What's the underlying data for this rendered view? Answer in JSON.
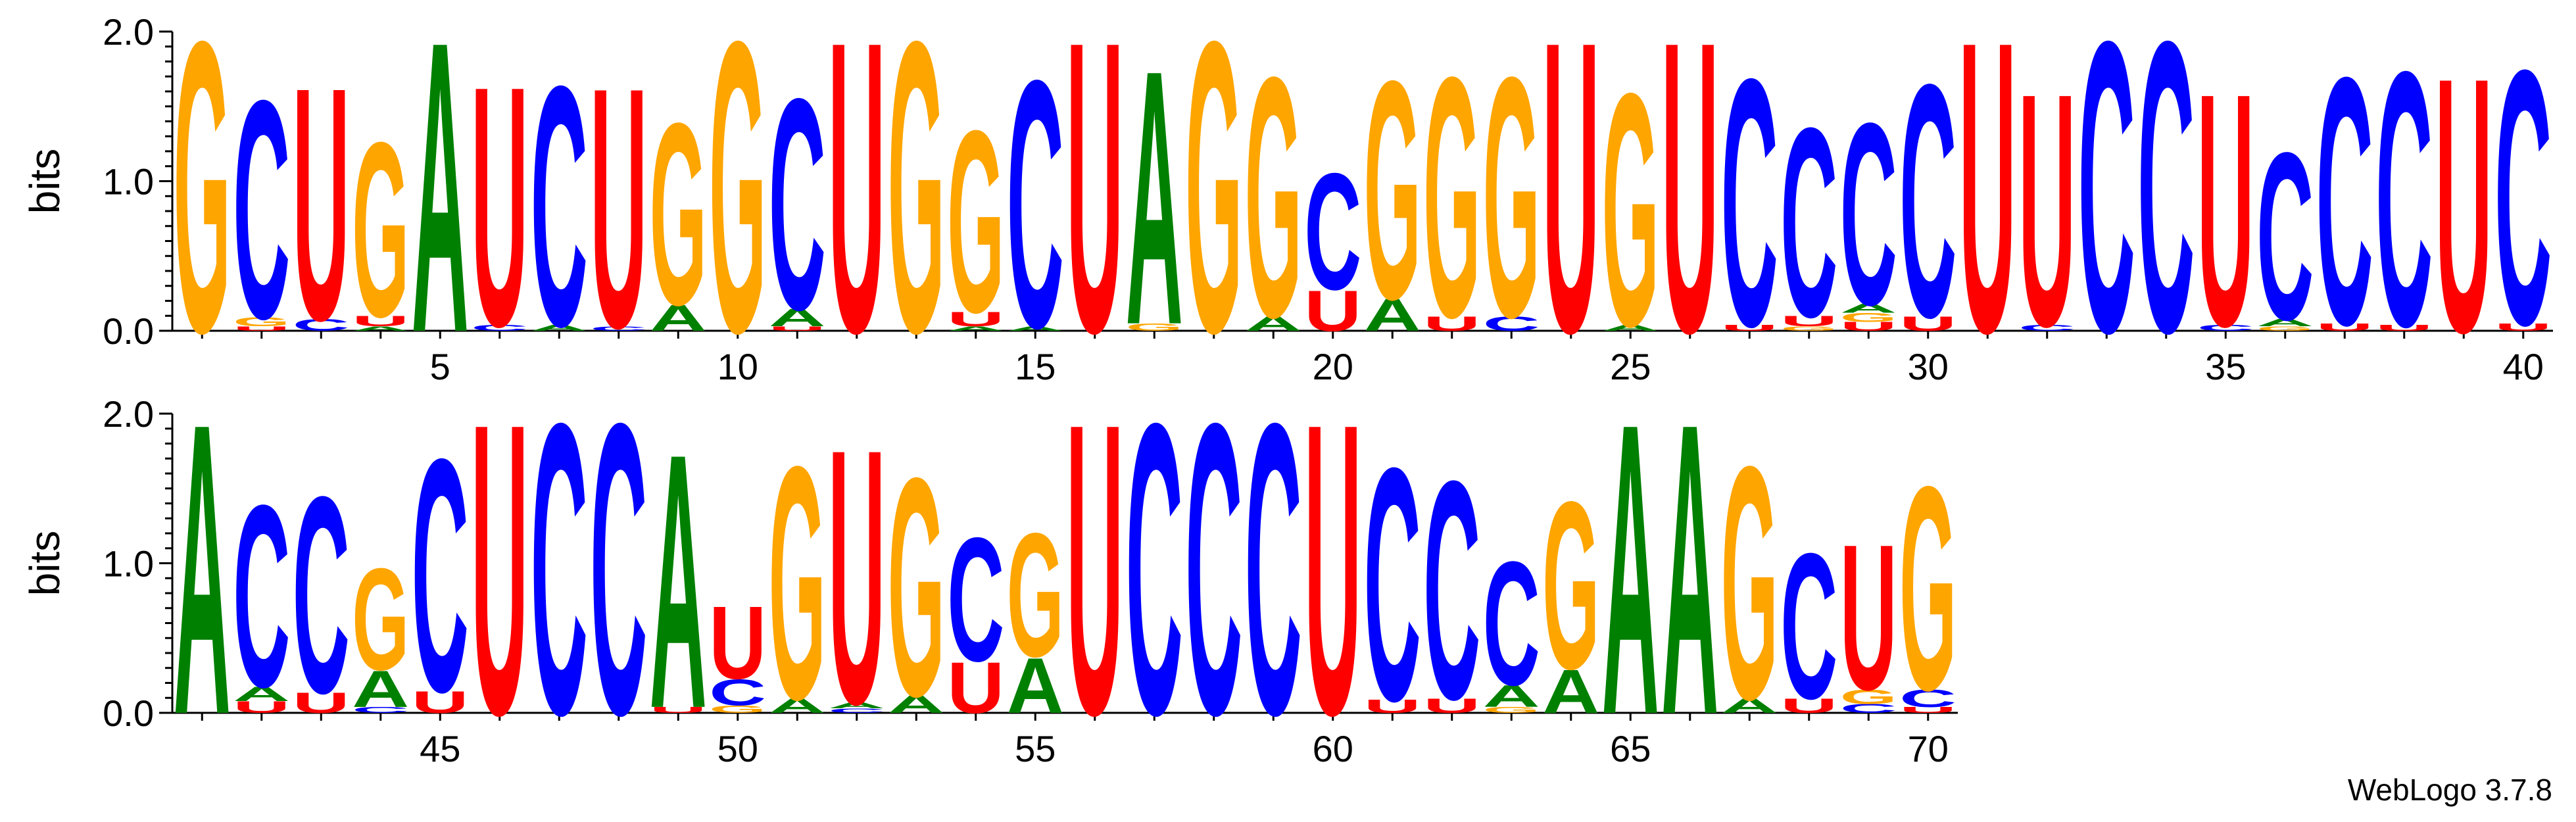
{
  "chart_data": {
    "type": "sequence-logo",
    "ylabel": "bits",
    "ylim": [
      0,
      2
    ],
    "yticks": [
      "0.0",
      "1.0",
      "2.0"
    ],
    "colors": {
      "A": "#008000",
      "C": "#0000ff",
      "G": "#ffa500",
      "U": "#ff0000"
    },
    "rows": [
      {
        "xticks": [
          "5",
          "10",
          "15",
          "20",
          "25",
          "30",
          "35",
          "40"
        ]
      },
      {
        "xticks": [
          "45",
          "50",
          "55",
          "60",
          "65",
          "70"
        ]
      }
    ],
    "positions": [
      {
        "pos": 1,
        "letters": [
          [
            "G",
            2.0
          ]
        ]
      },
      {
        "pos": 2,
        "letters": [
          [
            "U",
            0.03
          ],
          [
            "G",
            0.06
          ],
          [
            "C",
            1.5
          ]
        ]
      },
      {
        "pos": 3,
        "letters": [
          [
            "C",
            0.08
          ],
          [
            "U",
            1.6
          ]
        ]
      },
      {
        "pos": 4,
        "letters": [
          [
            "A",
            0.03
          ],
          [
            "U",
            0.07
          ],
          [
            "G",
            1.2
          ]
        ]
      },
      {
        "pos": 5,
        "letters": [
          [
            "A",
            2.0
          ]
        ]
      },
      {
        "pos": 6,
        "letters": [
          [
            "C",
            0.04
          ],
          [
            "U",
            1.65
          ]
        ]
      },
      {
        "pos": 7,
        "letters": [
          [
            "A",
            0.04
          ],
          [
            "C",
            1.65
          ]
        ]
      },
      {
        "pos": 8,
        "letters": [
          [
            "C",
            0.03
          ],
          [
            "U",
            1.65
          ]
        ]
      },
      {
        "pos": 9,
        "letters": [
          [
            "A",
            0.18
          ],
          [
            "G",
            1.25
          ]
        ]
      },
      {
        "pos": 10,
        "letters": [
          [
            "G",
            2.0
          ]
        ]
      },
      {
        "pos": 11,
        "letters": [
          [
            "U",
            0.03
          ],
          [
            "A",
            0.12
          ],
          [
            "C",
            1.45
          ]
        ]
      },
      {
        "pos": 12,
        "letters": [
          [
            "U",
            2.0
          ]
        ]
      },
      {
        "pos": 13,
        "letters": [
          [
            "G",
            2.0
          ]
        ]
      },
      {
        "pos": 14,
        "letters": [
          [
            "A",
            0.03
          ],
          [
            "U",
            0.1
          ],
          [
            "G",
            1.25
          ]
        ]
      },
      {
        "pos": 15,
        "letters": [
          [
            "A",
            0.03
          ],
          [
            "C",
            1.7
          ]
        ]
      },
      {
        "pos": 16,
        "letters": [
          [
            "U",
            2.0
          ]
        ]
      },
      {
        "pos": 17,
        "letters": [
          [
            "G",
            0.05
          ],
          [
            "A",
            1.75
          ]
        ]
      },
      {
        "pos": 18,
        "letters": [
          [
            "G",
            2.0
          ]
        ]
      },
      {
        "pos": 19,
        "letters": [
          [
            "A",
            0.1
          ],
          [
            "G",
            1.65
          ]
        ]
      },
      {
        "pos": 20,
        "letters": [
          [
            "U",
            0.28
          ],
          [
            "C",
            0.8
          ]
        ]
      },
      {
        "pos": 21,
        "letters": [
          [
            "A",
            0.22
          ],
          [
            "G",
            1.5
          ]
        ]
      },
      {
        "pos": 22,
        "letters": [
          [
            "U",
            0.1
          ],
          [
            "G",
            1.65
          ]
        ]
      },
      {
        "pos": 23,
        "letters": [
          [
            "C",
            0.1
          ],
          [
            "G",
            1.65
          ]
        ]
      },
      {
        "pos": 24,
        "letters": [
          [
            "U",
            2.0
          ]
        ]
      },
      {
        "pos": 25,
        "letters": [
          [
            "A",
            0.04
          ],
          [
            "G",
            1.6
          ]
        ]
      },
      {
        "pos": 26,
        "letters": [
          [
            "U",
            2.0
          ]
        ]
      },
      {
        "pos": 27,
        "letters": [
          [
            "U",
            0.04
          ],
          [
            "C",
            1.7
          ]
        ]
      },
      {
        "pos": 28,
        "letters": [
          [
            "G",
            0.03
          ],
          [
            "U",
            0.07
          ],
          [
            "C",
            1.3
          ]
        ]
      },
      {
        "pos": 29,
        "letters": [
          [
            "U",
            0.06
          ],
          [
            "G",
            0.06
          ],
          [
            "A",
            0.06
          ],
          [
            "C",
            1.25
          ]
        ]
      },
      {
        "pos": 30,
        "letters": [
          [
            "U",
            0.1
          ],
          [
            "C",
            1.6
          ]
        ]
      },
      {
        "pos": 31,
        "letters": [
          [
            "U",
            2.0
          ]
        ]
      },
      {
        "pos": 32,
        "letters": [
          [
            "C",
            0.04
          ],
          [
            "U",
            1.6
          ]
        ]
      },
      {
        "pos": 33,
        "letters": [
          [
            "C",
            2.0
          ]
        ]
      },
      {
        "pos": 34,
        "letters": [
          [
            "C",
            2.0
          ]
        ]
      },
      {
        "pos": 35,
        "letters": [
          [
            "C",
            0.04
          ],
          [
            "U",
            1.6
          ]
        ]
      },
      {
        "pos": 36,
        "letters": [
          [
            "G",
            0.03
          ],
          [
            "A",
            0.05
          ],
          [
            "C",
            1.15
          ]
        ]
      },
      {
        "pos": 37,
        "letters": [
          [
            "U",
            0.05
          ],
          [
            "C",
            1.7
          ]
        ]
      },
      {
        "pos": 38,
        "letters": [
          [
            "U",
            0.04
          ],
          [
            "C",
            1.75
          ]
        ]
      },
      {
        "pos": 39,
        "letters": [
          [
            "U",
            1.75
          ]
        ]
      },
      {
        "pos": 40,
        "letters": [
          [
            "U",
            0.05
          ],
          [
            "C",
            1.75
          ]
        ]
      },
      {
        "pos": 41,
        "letters": [
          [
            "A",
            2.0
          ]
        ]
      },
      {
        "pos": 42,
        "letters": [
          [
            "U",
            0.08
          ],
          [
            "A",
            0.1
          ],
          [
            "C",
            1.25
          ]
        ]
      },
      {
        "pos": 43,
        "letters": [
          [
            "U",
            0.14
          ],
          [
            "C",
            1.35
          ]
        ]
      },
      {
        "pos": 44,
        "letters": [
          [
            "C",
            0.04
          ],
          [
            "A",
            0.25
          ],
          [
            "G",
            0.7
          ]
        ]
      },
      {
        "pos": 45,
        "letters": [
          [
            "U",
            0.15
          ],
          [
            "C",
            1.6
          ]
        ]
      },
      {
        "pos": 46,
        "letters": [
          [
            "U",
            2.0
          ]
        ]
      },
      {
        "pos": 47,
        "letters": [
          [
            "C",
            2.0
          ]
        ]
      },
      {
        "pos": 48,
        "letters": [
          [
            "C",
            2.0
          ]
        ]
      },
      {
        "pos": 49,
        "letters": [
          [
            "U",
            0.04
          ],
          [
            "A",
            1.75
          ]
        ]
      },
      {
        "pos": 50,
        "letters": [
          [
            "G",
            0.05
          ],
          [
            "C",
            0.18
          ],
          [
            "U",
            0.5
          ]
        ]
      },
      {
        "pos": 51,
        "letters": [
          [
            "A",
            0.1
          ],
          [
            "G",
            1.6
          ]
        ]
      },
      {
        "pos": 52,
        "letters": [
          [
            "C",
            0.03
          ],
          [
            "A",
            0.04
          ],
          [
            "U",
            1.75
          ]
        ]
      },
      {
        "pos": 53,
        "letters": [
          [
            "A",
            0.12
          ],
          [
            "G",
            1.5
          ]
        ]
      },
      {
        "pos": 54,
        "letters": [
          [
            "U",
            0.35
          ],
          [
            "C",
            0.85
          ]
        ]
      },
      {
        "pos": 55,
        "letters": [
          [
            "A",
            0.38
          ],
          [
            "G",
            0.85
          ]
        ]
      },
      {
        "pos": 56,
        "letters": [
          [
            "U",
            2.0
          ]
        ]
      },
      {
        "pos": 57,
        "letters": [
          [
            "C",
            2.0
          ]
        ]
      },
      {
        "pos": 58,
        "letters": [
          [
            "C",
            2.0
          ]
        ]
      },
      {
        "pos": 59,
        "letters": [
          [
            "C",
            2.0
          ]
        ]
      },
      {
        "pos": 60,
        "letters": [
          [
            "U",
            2.0
          ]
        ]
      },
      {
        "pos": 61,
        "letters": [
          [
            "U",
            0.09
          ],
          [
            "C",
            1.6
          ]
        ]
      },
      {
        "pos": 62,
        "letters": [
          [
            "U",
            0.1
          ],
          [
            "C",
            1.5
          ]
        ]
      },
      {
        "pos": 63,
        "letters": [
          [
            "G",
            0.04
          ],
          [
            "A",
            0.15
          ],
          [
            "C",
            0.85
          ]
        ]
      },
      {
        "pos": 64,
        "letters": [
          [
            "A",
            0.3
          ],
          [
            "G",
            1.15
          ]
        ]
      },
      {
        "pos": 65,
        "letters": [
          [
            "A",
            2.0
          ]
        ]
      },
      {
        "pos": 66,
        "letters": [
          [
            "A",
            2.0
          ]
        ]
      },
      {
        "pos": 67,
        "letters": [
          [
            "A",
            0.1
          ],
          [
            "G",
            1.6
          ]
        ]
      },
      {
        "pos": 68,
        "letters": [
          [
            "U",
            0.1
          ],
          [
            "C",
            1.0
          ]
        ]
      },
      {
        "pos": 69,
        "letters": [
          [
            "C",
            0.06
          ],
          [
            "G",
            0.1
          ],
          [
            "U",
            1.0
          ]
        ]
      },
      {
        "pos": 70,
        "letters": [
          [
            "U",
            0.04
          ],
          [
            "C",
            0.12
          ],
          [
            "G",
            1.4
          ]
        ]
      }
    ]
  },
  "footer": {
    "version_label": "WebLogo 3.7.8"
  }
}
